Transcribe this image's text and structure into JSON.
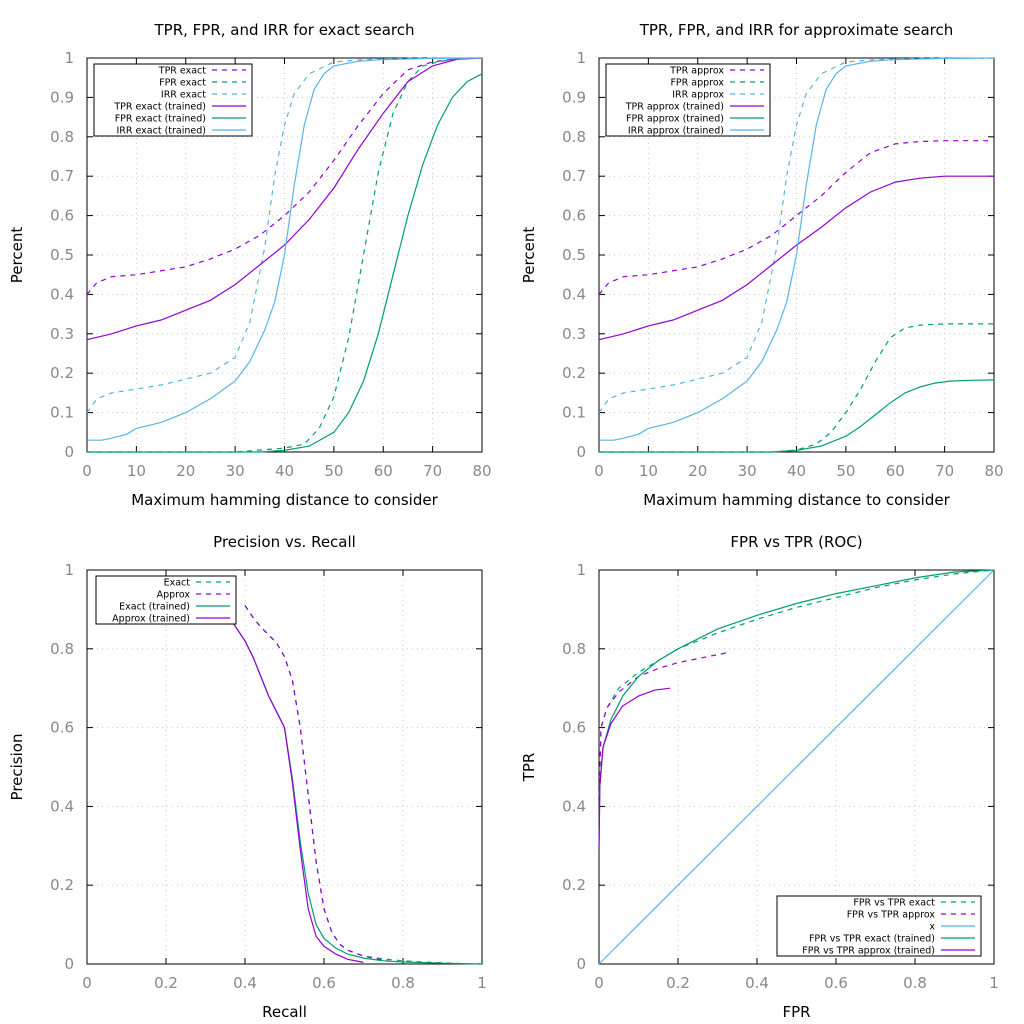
{
  "colors": {
    "purple": "#9400d3",
    "green": "#009e73",
    "blue": "#56b4e9"
  },
  "chart_data": [
    {
      "id": "tl",
      "type": "line",
      "title": "TPR, FPR, and IRR for exact search",
      "xlabel": "Maximum hamming distance to consider",
      "ylabel": "Percent",
      "xlim": [
        0,
        80
      ],
      "ylim": [
        0,
        1
      ],
      "xticks": [
        0,
        10,
        20,
        30,
        40,
        50,
        60,
        70,
        80
      ],
      "yticks": [
        0,
        0.1,
        0.2,
        0.3,
        0.4,
        0.5,
        0.6,
        0.7,
        0.8,
        0.9,
        1
      ],
      "xtick_labels": [
        "0",
        "10",
        "20",
        "30",
        "40",
        "50",
        "60",
        "70",
        "80"
      ],
      "ytick_labels": [
        "0",
        "0.1",
        "0.2",
        "0.3",
        "0.4",
        "0.5",
        "0.6",
        "0.7",
        "0.8",
        "0.9",
        "1"
      ],
      "grid": true,
      "legend": "top-left",
      "series": [
        {
          "name": "TPR exact",
          "color": "purple",
          "dash": true,
          "x": [
            0,
            2,
            5,
            10,
            15,
            20,
            25,
            30,
            35,
            40,
            45,
            50,
            55,
            60,
            65,
            70,
            75,
            80
          ],
          "y": [
            0.4,
            0.43,
            0.445,
            0.45,
            0.46,
            0.47,
            0.49,
            0.515,
            0.55,
            0.6,
            0.66,
            0.74,
            0.83,
            0.91,
            0.97,
            0.99,
            0.998,
            1.0
          ]
        },
        {
          "name": "FPR exact",
          "color": "green",
          "dash": true,
          "x": [
            0,
            30,
            40,
            44,
            47,
            50,
            53,
            56,
            59,
            62,
            65,
            68,
            71,
            75,
            80
          ],
          "y": [
            0,
            0,
            0.01,
            0.02,
            0.06,
            0.14,
            0.29,
            0.5,
            0.71,
            0.86,
            0.94,
            0.98,
            0.99,
            0.998,
            1.0
          ]
        },
        {
          "name": "IRR exact",
          "color": "blue",
          "dash": true,
          "x": [
            0,
            2,
            5,
            10,
            15,
            20,
            25,
            30,
            33,
            36,
            38,
            40,
            42,
            45,
            50,
            55,
            60,
            70,
            80
          ],
          "y": [
            0.1,
            0.135,
            0.15,
            0.16,
            0.17,
            0.185,
            0.2,
            0.24,
            0.33,
            0.52,
            0.7,
            0.83,
            0.91,
            0.96,
            0.99,
            0.995,
            0.998,
            1.0,
            1.0
          ]
        },
        {
          "name": "TPR exact (trained)",
          "color": "purple",
          "dash": false,
          "x": [
            0,
            5,
            10,
            15,
            20,
            25,
            30,
            35,
            40,
            45,
            50,
            55,
            60,
            65,
            70,
            75,
            80
          ],
          "y": [
            0.285,
            0.3,
            0.32,
            0.335,
            0.36,
            0.385,
            0.425,
            0.475,
            0.525,
            0.59,
            0.67,
            0.77,
            0.86,
            0.94,
            0.98,
            0.997,
            1.0
          ]
        },
        {
          "name": "FPR exact (trained)",
          "color": "green",
          "dash": false,
          "x": [
            0,
            35,
            40,
            45,
            50,
            53,
            56,
            59,
            62,
            65,
            68,
            71,
            74,
            77,
            80
          ],
          "y": [
            0,
            0,
            0.004,
            0.015,
            0.05,
            0.1,
            0.18,
            0.3,
            0.45,
            0.6,
            0.73,
            0.83,
            0.9,
            0.94,
            0.96
          ]
        },
        {
          "name": "IRR exact (trained)",
          "color": "blue",
          "dash": false,
          "x": [
            0,
            3,
            5,
            8,
            10,
            15,
            20,
            25,
            30,
            33,
            36,
            38,
            40,
            42,
            44,
            46,
            48,
            50,
            55,
            60,
            70,
            80
          ],
          "y": [
            0.03,
            0.03,
            0.035,
            0.045,
            0.06,
            0.075,
            0.1,
            0.135,
            0.18,
            0.23,
            0.31,
            0.38,
            0.5,
            0.68,
            0.83,
            0.92,
            0.96,
            0.98,
            0.992,
            0.996,
            0.999,
            1.0
          ]
        }
      ]
    },
    {
      "id": "tr",
      "type": "line",
      "title": "TPR, FPR, and IRR for approximate search",
      "xlabel": "Maximum hamming distance to consider",
      "ylabel": "Percent",
      "xlim": [
        0,
        80
      ],
      "ylim": [
        0,
        1
      ],
      "xticks": [
        0,
        10,
        20,
        30,
        40,
        50,
        60,
        70,
        80
      ],
      "yticks": [
        0,
        0.1,
        0.2,
        0.3,
        0.4,
        0.5,
        0.6,
        0.7,
        0.8,
        0.9,
        1
      ],
      "xtick_labels": [
        "0",
        "10",
        "20",
        "30",
        "40",
        "50",
        "60",
        "70",
        "80"
      ],
      "ytick_labels": [
        "0",
        "0.1",
        "0.2",
        "0.3",
        "0.4",
        "0.5",
        "0.6",
        "0.7",
        "0.8",
        "0.9",
        "1"
      ],
      "grid": true,
      "legend": "top-left",
      "series": [
        {
          "name": "TPR approx",
          "color": "purple",
          "dash": true,
          "x": [
            0,
            2,
            5,
            10,
            15,
            20,
            25,
            30,
            35,
            40,
            45,
            50,
            55,
            60,
            65,
            70,
            75,
            80
          ],
          "y": [
            0.4,
            0.43,
            0.445,
            0.45,
            0.46,
            0.47,
            0.49,
            0.515,
            0.55,
            0.6,
            0.65,
            0.71,
            0.76,
            0.782,
            0.788,
            0.79,
            0.79,
            0.79
          ]
        },
        {
          "name": "FPR approx",
          "color": "green",
          "dash": true,
          "x": [
            0,
            35,
            40,
            44,
            47,
            50,
            53,
            56,
            59,
            62,
            65,
            70,
            75,
            80
          ],
          "y": [
            0,
            0,
            0.005,
            0.02,
            0.05,
            0.1,
            0.16,
            0.23,
            0.29,
            0.315,
            0.322,
            0.325,
            0.325,
            0.325
          ]
        },
        {
          "name": "IRR approx",
          "color": "blue",
          "dash": true,
          "x": [
            0,
            2,
            5,
            10,
            15,
            20,
            25,
            30,
            33,
            36,
            38,
            40,
            42,
            45,
            50,
            55,
            60,
            70,
            80
          ],
          "y": [
            0.1,
            0.135,
            0.15,
            0.16,
            0.17,
            0.185,
            0.2,
            0.24,
            0.33,
            0.52,
            0.7,
            0.83,
            0.91,
            0.96,
            0.99,
            0.995,
            0.998,
            1.0,
            1.0
          ]
        },
        {
          "name": "TPR approx (trained)",
          "color": "purple",
          "dash": false,
          "x": [
            0,
            5,
            10,
            15,
            20,
            25,
            30,
            35,
            40,
            45,
            50,
            55,
            60,
            65,
            70,
            75,
            80
          ],
          "y": [
            0.285,
            0.3,
            0.32,
            0.335,
            0.36,
            0.385,
            0.425,
            0.475,
            0.525,
            0.57,
            0.62,
            0.66,
            0.685,
            0.695,
            0.7,
            0.7,
            0.7
          ]
        },
        {
          "name": "FPR approx (trained)",
          "color": "green",
          "dash": false,
          "x": [
            0,
            35,
            40,
            45,
            50,
            53,
            56,
            59,
            62,
            65,
            68,
            71,
            75,
            80
          ],
          "y": [
            0,
            0,
            0.004,
            0.015,
            0.04,
            0.065,
            0.095,
            0.125,
            0.15,
            0.165,
            0.175,
            0.18,
            0.182,
            0.183
          ]
        },
        {
          "name": "IRR approx (trained)",
          "color": "blue",
          "dash": false,
          "x": [
            0,
            3,
            5,
            8,
            10,
            15,
            20,
            25,
            30,
            33,
            36,
            38,
            40,
            42,
            44,
            46,
            48,
            50,
            55,
            60,
            70,
            80
          ],
          "y": [
            0.03,
            0.03,
            0.035,
            0.045,
            0.06,
            0.075,
            0.1,
            0.135,
            0.18,
            0.23,
            0.31,
            0.38,
            0.5,
            0.68,
            0.83,
            0.92,
            0.96,
            0.98,
            0.992,
            0.996,
            0.999,
            1.0
          ]
        }
      ]
    },
    {
      "id": "bl",
      "type": "line",
      "title": "Precision vs. Recall",
      "xlabel": "Recall",
      "ylabel": "Precision",
      "xlim": [
        0,
        1
      ],
      "ylim": [
        0,
        1
      ],
      "xticks": [
        0,
        0.2,
        0.4,
        0.6,
        0.8,
        1
      ],
      "yticks": [
        0,
        0.2,
        0.4,
        0.6,
        0.8,
        1
      ],
      "xtick_labels": [
        "0",
        "0.2",
        "0.4",
        "0.6",
        "0.8",
        "1"
      ],
      "ytick_labels": [
        "0",
        "0.2",
        "0.4",
        "0.6",
        "0.8",
        "1"
      ],
      "grid": true,
      "legend": "top-left",
      "series": [
        {
          "name": "Exact",
          "color": "green",
          "dash": true,
          "x": [
            0.4,
            0.42,
            0.44,
            0.46,
            0.48,
            0.5,
            0.52,
            0.54,
            0.56,
            0.58,
            0.6,
            0.62,
            0.64,
            0.66,
            0.7,
            0.75,
            0.8,
            0.85,
            0.9,
            0.95,
            1.0
          ],
          "y": [
            0.91,
            0.88,
            0.855,
            0.835,
            0.815,
            0.78,
            0.72,
            0.6,
            0.43,
            0.26,
            0.14,
            0.08,
            0.05,
            0.035,
            0.02,
            0.013,
            0.008,
            0.005,
            0.003,
            0.001,
            0
          ]
        },
        {
          "name": "Approx",
          "color": "purple",
          "dash": true,
          "x": [
            0.4,
            0.42,
            0.44,
            0.46,
            0.48,
            0.5,
            0.52,
            0.54,
            0.56,
            0.58,
            0.6,
            0.62,
            0.64,
            0.66,
            0.7,
            0.75,
            0.78
          ],
          "y": [
            0.91,
            0.88,
            0.855,
            0.835,
            0.815,
            0.78,
            0.72,
            0.6,
            0.43,
            0.26,
            0.14,
            0.08,
            0.05,
            0.035,
            0.02,
            0.01,
            0.005
          ]
        },
        {
          "name": "Exact (trained)",
          "color": "green",
          "dash": false,
          "x": [
            0.285,
            0.3,
            0.32,
            0.34,
            0.36,
            0.38,
            0.4,
            0.42,
            0.44,
            0.46,
            0.48,
            0.5,
            0.52,
            0.54,
            0.56,
            0.58,
            0.6,
            0.63,
            0.66,
            0.7,
            0.75,
            0.8,
            0.9,
            1.0
          ],
          "y": [
            0.97,
            0.96,
            0.94,
            0.91,
            0.88,
            0.85,
            0.82,
            0.78,
            0.73,
            0.68,
            0.64,
            0.6,
            0.47,
            0.31,
            0.18,
            0.1,
            0.065,
            0.04,
            0.025,
            0.015,
            0.008,
            0.005,
            0.002,
            0
          ]
        },
        {
          "name": "Approx (trained)",
          "color": "purple",
          "dash": false,
          "x": [
            0.285,
            0.3,
            0.32,
            0.34,
            0.36,
            0.38,
            0.4,
            0.42,
            0.44,
            0.46,
            0.48,
            0.5,
            0.52,
            0.54,
            0.56,
            0.58,
            0.6,
            0.63,
            0.66,
            0.7
          ],
          "y": [
            0.97,
            0.96,
            0.94,
            0.91,
            0.88,
            0.85,
            0.82,
            0.78,
            0.73,
            0.68,
            0.64,
            0.6,
            0.46,
            0.29,
            0.14,
            0.07,
            0.045,
            0.025,
            0.012,
            0.004
          ]
        }
      ]
    },
    {
      "id": "br",
      "type": "line",
      "title": "FPR vs TPR (ROC)",
      "xlabel": "FPR",
      "ylabel": "TPR",
      "xlim": [
        0,
        1
      ],
      "ylim": [
        0,
        1
      ],
      "xticks": [
        0,
        0.2,
        0.4,
        0.6,
        0.8,
        1
      ],
      "yticks": [
        0,
        0.2,
        0.4,
        0.6,
        0.8,
        1
      ],
      "xtick_labels": [
        "0",
        "0.2",
        "0.4",
        "0.6",
        "0.8",
        "1"
      ],
      "ytick_labels": [
        "0",
        "0.2",
        "0.4",
        "0.6",
        "0.8",
        "1"
      ],
      "grid": true,
      "legend": "bottom-right",
      "series": [
        {
          "name": "FPR vs TPR exact",
          "color": "green",
          "dash": true,
          "x": [
            0,
            0.005,
            0.02,
            0.05,
            0.1,
            0.15,
            0.2,
            0.3,
            0.4,
            0.5,
            0.6,
            0.7,
            0.8,
            0.9,
            1.0
          ],
          "y": [
            0.4,
            0.6,
            0.65,
            0.7,
            0.74,
            0.77,
            0.8,
            0.84,
            0.875,
            0.905,
            0.93,
            0.955,
            0.975,
            0.99,
            1.0
          ]
        },
        {
          "name": "FPR vs TPR approx",
          "color": "purple",
          "dash": true,
          "x": [
            0,
            0.005,
            0.02,
            0.05,
            0.1,
            0.15,
            0.2,
            0.25,
            0.3,
            0.325
          ],
          "y": [
            0.4,
            0.6,
            0.65,
            0.69,
            0.73,
            0.75,
            0.765,
            0.775,
            0.785,
            0.79
          ]
        },
        {
          "name": "x",
          "color": "blue",
          "dash": false,
          "x": [
            0,
            1
          ],
          "y": [
            0,
            1
          ]
        },
        {
          "name": "FPR vs TPR exact (trained)",
          "color": "green",
          "dash": false,
          "x": [
            0,
            0.002,
            0.01,
            0.03,
            0.06,
            0.1,
            0.15,
            0.2,
            0.3,
            0.4,
            0.5,
            0.6,
            0.7,
            0.8,
            0.9,
            1.0
          ],
          "y": [
            0.29,
            0.45,
            0.55,
            0.62,
            0.68,
            0.73,
            0.77,
            0.8,
            0.85,
            0.885,
            0.915,
            0.94,
            0.96,
            0.98,
            0.995,
            1.0
          ]
        },
        {
          "name": "FPR vs TPR approx (trained)",
          "color": "purple",
          "dash": false,
          "x": [
            0,
            0.002,
            0.01,
            0.03,
            0.06,
            0.1,
            0.14,
            0.18
          ],
          "y": [
            0.29,
            0.45,
            0.55,
            0.61,
            0.655,
            0.68,
            0.695,
            0.7
          ]
        }
      ]
    }
  ]
}
